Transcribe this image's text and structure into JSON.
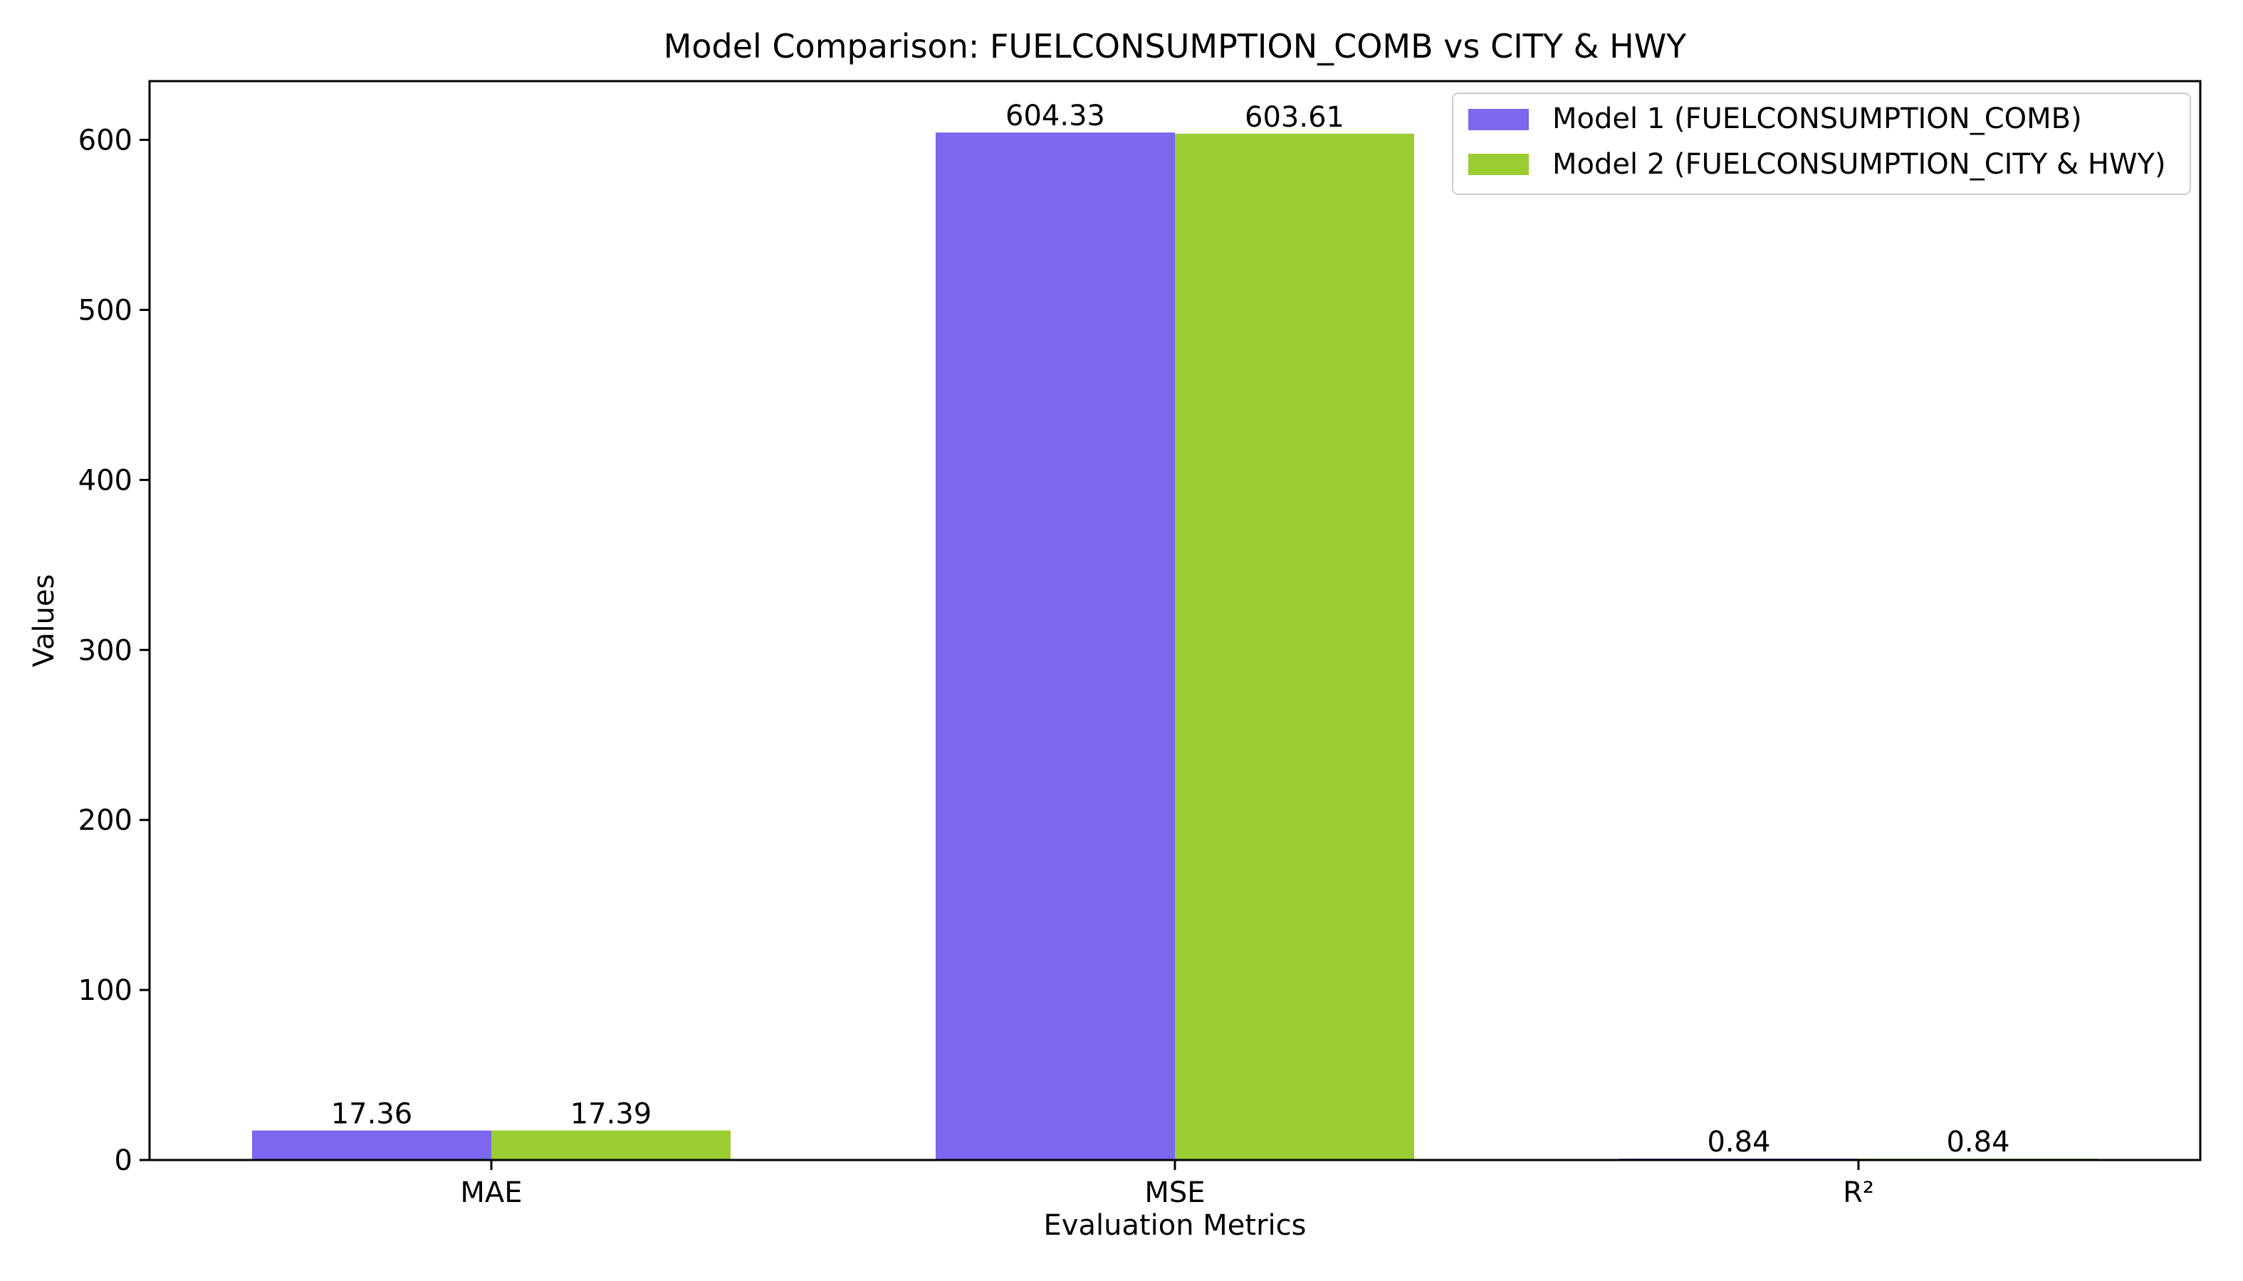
{
  "chart_data": {
    "type": "bar",
    "title": "Model Comparison: FUELCONSUMPTION_COMB vs CITY & HWY",
    "xlabel": "Evaluation Metrics",
    "ylabel": "Values",
    "categories": [
      "MAE",
      "MSE",
      "R²"
    ],
    "series": [
      {
        "name": "Model 1 (FUELCONSUMPTION_COMB)",
        "color": "#7b68ee",
        "values": [
          17.36,
          604.33,
          0.84
        ],
        "labels": [
          "17.36",
          "604.33",
          "0.84"
        ]
      },
      {
        "name": "Model 2 (FUELCONSUMPTION_CITY & HWY)",
        "color": "#9acd32",
        "values": [
          17.39,
          603.61,
          0.84
        ],
        "labels": [
          "17.39",
          "603.61",
          "0.84"
        ]
      }
    ],
    "ylim": [
      0,
      634.54
    ],
    "yticks": [
      0,
      100,
      200,
      300,
      400,
      500,
      600
    ],
    "grid": false,
    "legend_position": "top-right"
  }
}
